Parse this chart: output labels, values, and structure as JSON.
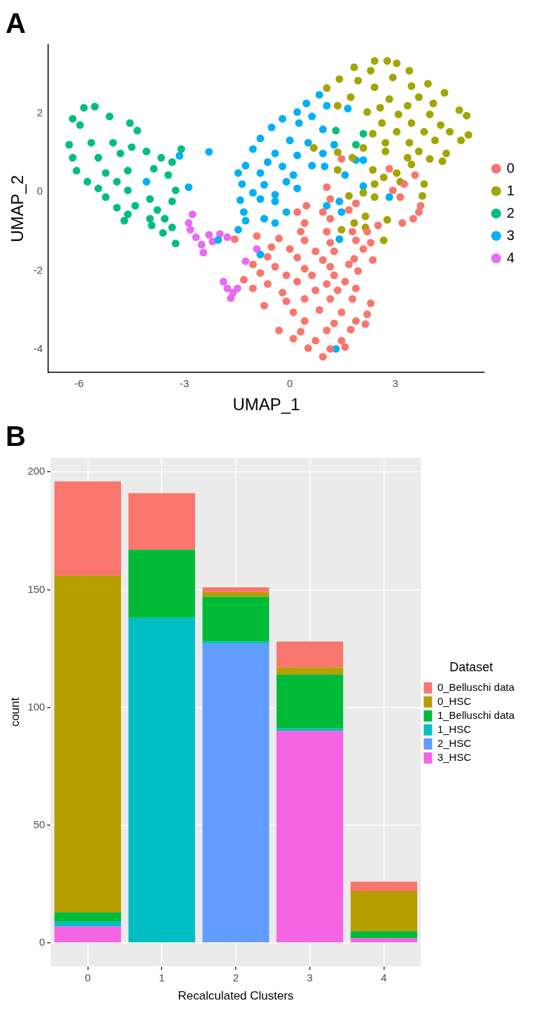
{
  "chart_data": [
    {
      "type": "scatter",
      "title": "A",
      "xlabel": "UMAP_1",
      "ylabel": "UMAP_2",
      "xlim": [
        -6.87,
        5.53
      ],
      "ylim": [
        -4.59,
        3.74
      ],
      "xticks": [
        -6,
        -3,
        0,
        3
      ],
      "yticks": [
        -4,
        -2,
        0,
        2
      ],
      "grid": false,
      "legend": "right",
      "marker": "circle",
      "series": [
        {
          "name": "0",
          "color": "#f8766d",
          "x": [
            2.83,
            3.56,
            1.05,
            2.93,
            3.25,
            3.14,
            3.72,
            3.67,
            1.15,
            1.88,
            3.51,
            3.2,
            0.47,
            0.21,
            0.94,
            1.68,
            0.42,
            1.15,
            2.51,
            0.31,
            1.05,
            1.78,
            2.2,
            -1.57,
            -0.94,
            -0.31,
            0.42,
            1.15,
            1.88,
            2.3,
            -0.52,
            0,
            0.73,
            1.26,
            2.09,
            -0.63,
            0.21,
            0.94,
            1.83,
            2.36,
            -1.05,
            -0.42,
            0.42,
            1.15,
            1.68,
            -0.84,
            -0.1,
            0.63,
            1.26,
            1.94,
            -1.31,
            -0.63,
            0.21,
            1.05,
            1.57,
            -1.05,
            -0.21,
            0.73,
            1.36,
            1.88,
            -0.73,
            -0.1,
            0.42,
            1.15,
            1.78,
            2.3,
            0.1,
            0.84,
            1.47,
            2.2,
            0.42,
            1.26,
            1.88,
            -0.31,
            0.31,
            1.05,
            1.73,
            2.15,
            0.1,
            0.73,
            1.47,
            0.52,
            1.15,
            1.57,
            0.94,
            1.47
          ],
          "values": [
            0.59,
            0.43,
            0.12,
            0.04,
            0.2,
            -0.13,
            -0.35,
            -0.51,
            -0.18,
            -0.29,
            -0.68,
            -0.79,
            -0.35,
            -0.51,
            -0.51,
            -0.46,
            -0.79,
            -0.68,
            -0.85,
            -1.01,
            -1.01,
            -1.01,
            -1.01,
            -1.2,
            -1.12,
            -1.18,
            -1.23,
            -1.29,
            -1.23,
            -1.29,
            -1.4,
            -1.45,
            -1.51,
            -1.51,
            -1.45,
            -1.65,
            -1.67,
            -1.73,
            -1.7,
            -1.73,
            -1.84,
            -1.9,
            -1.95,
            -1.9,
            -1.84,
            -2.06,
            -2.12,
            -2.12,
            -2.12,
            -2.01,
            -2.23,
            -2.34,
            -2.28,
            -2.34,
            -2.28,
            -2.45,
            -2.56,
            -2.5,
            -2.5,
            -2.45,
            -2.89,
            -2.78,
            -2.72,
            -2.72,
            -2.72,
            -2.83,
            -3.06,
            -3,
            -3.06,
            -3.11,
            -3.28,
            -3.34,
            -3.28,
            -3.52,
            -3.55,
            -3.52,
            -3.5,
            -3.36,
            -3.73,
            -3.78,
            -3.78,
            -3.97,
            -3.99,
            -3.94,
            -4.19,
            0.84
          ]
        },
        {
          "name": "1",
          "color": "#a3a500",
          "x": [
            2.41,
            2.77,
            3.04,
            1.83,
            2.3,
            3.4,
            1.41,
            1.94,
            2.93,
            1.05,
            2.41,
            3.46,
            3.93,
            4.4,
            1.73,
            2.83,
            3.67,
            1.36,
            2.57,
            3.35,
            4.08,
            4.82,
            2.2,
            3.09,
            3.98,
            5.03,
            2.62,
            3.46,
            4.29,
            2.36,
            3.04,
            3.82,
            4.55,
            5.08,
            2.72,
            3.4,
            4.13,
            4.87,
            0.68,
            1.36,
            2.09,
            2.72,
            3.67,
            4.45,
            1.78,
            3.35,
            3.98,
            4.34,
            3.46,
            1.36,
            2.36,
            3.04,
            2.67,
            2.41,
            3.82,
            3.14,
            2.09,
            1.68,
            3.77,
            2.41,
            2.15,
            2.77,
            1.83,
            1.47,
            2.67,
            2.15
          ],
          "values": [
            3.33,
            3.33,
            3.27,
            3.17,
            3.08,
            3.08,
            2.87,
            2.83,
            2.91,
            2.64,
            2.66,
            2.69,
            2.75,
            2.52,
            2.41,
            2.36,
            2.41,
            2.19,
            2.14,
            2.19,
            2.25,
            2.08,
            2.03,
            1.97,
            1.97,
            1.94,
            1.75,
            1.75,
            1.7,
            1.48,
            1.53,
            1.53,
            1.53,
            1.45,
            1.25,
            1.25,
            1.31,
            1.31,
            1.12,
            1.01,
            1.12,
            1.03,
            1.03,
            0.98,
            0.87,
            0.87,
            0.84,
            0.78,
            0.7,
            0.56,
            0.56,
            0.48,
            0.37,
            0.2,
            0.2,
            0.26,
            -0.02,
            -0.1,
            -0.1,
            -0.13,
            -0.62,
            -0.71,
            -0.79,
            -0.96,
            -1.23,
            -0.9
          ]
        },
        {
          "name": "2",
          "color": "#00bf7d",
          "x": [
            -5.86,
            -5.55,
            -6.18,
            -5.97,
            -5.13,
            -4.55,
            -4.34,
            -6.28,
            -5.65,
            -5.03,
            -4.5,
            -6.18,
            -5.45,
            -4.82,
            -4.08,
            -3.66,
            -3.35,
            -3.09,
            -6.07,
            -5.24,
            -4.61,
            -3.87,
            -3.46,
            -5.76,
            -4.92,
            -5.45,
            -4.61,
            -5.24,
            -3.98,
            -3.35,
            -3.25,
            -4.92,
            -4.4,
            -3.77,
            -4.61,
            -4.71,
            -3.98,
            -3.56,
            -3.93,
            -3.35,
            -3.61,
            -3.25,
            1.31,
            2.09,
            1.88
          ],
          "values": [
            2.14,
            2.17,
            1.86,
            1.7,
            1.92,
            1.75,
            1.56,
            1.2,
            1.25,
            1.25,
            1.14,
            0.87,
            0.87,
            0.98,
            1.03,
            0.87,
            0.76,
            1.09,
            0.54,
            0.48,
            0.54,
            0.59,
            0.43,
            0.26,
            0.26,
            0.09,
            0.04,
            -0.13,
            -0.18,
            -0.24,
            0.04,
            -0.4,
            -0.35,
            -0.46,
            -0.57,
            -0.73,
            -0.68,
            -0.68,
            -0.85,
            -0.9,
            -1.04,
            -1.31,
            1.56,
            1.48,
            1.2
          ]
        },
        {
          "name": "3",
          "color": "#00b0f6",
          "x": [
            0.84,
            0.47,
            1.05,
            1.65,
            0.21,
            -0.21,
            0.63,
            -0.52,
            0.26,
            0.94,
            -0.84,
            0,
            0.52,
            1.26,
            -1.05,
            -0.42,
            0.21,
            0.94,
            2.09,
            -0.63,
            -0.21,
            0.63,
            0.99,
            -1.26,
            -1.47,
            -0.84,
            0.1,
            1.57,
            -1.36,
            -0.73,
            -0.1,
            0.21,
            -1.05,
            -0.42,
            -1.41,
            -0.84,
            -0.42,
            -1.31,
            -0.1,
            -1.26,
            -0.73,
            -0.42,
            -1.47,
            1.05,
            1.41,
            1.47,
            2.2,
            2.83,
            2.09,
            1.41,
            -2.04,
            -3.14,
            -2.3,
            -4.08,
            -2.88,
            -0.84,
            1.31,
            1.88
          ],
          "values": [
            2.47,
            2.25,
            2.19,
            2.12,
            2.03,
            1.86,
            1.92,
            1.64,
            1.75,
            1.59,
            1.36,
            1.31,
            1.25,
            1.2,
            1.09,
            0.98,
            0.93,
            0.98,
            0.81,
            0.76,
            0.65,
            0.67,
            0.65,
            0.67,
            0.48,
            0.48,
            0.43,
            0.43,
            0.2,
            0.18,
            0.26,
            0.09,
            -0.02,
            -0.07,
            -0.21,
            -0.18,
            -0.24,
            -0.51,
            -0.51,
            -0.73,
            -0.68,
            -0.79,
            -0.96,
            -0.35,
            -0.24,
            -0.51,
            null,
            -0.13,
            0.15,
            -1.2,
            -1.22,
            0.92,
            1.02,
            0.26,
            0.12,
            -1.59,
            -3.99,
            0.81
          ]
        },
        {
          "name": "4",
          "color": "#e76bf3",
          "x": [
            -2.77,
            -2.88,
            -2.83,
            -2.67,
            -2.3,
            -1.99,
            -1.78,
            -2.51,
            -2.2,
            -2.46,
            -0.94,
            -1.26,
            -1.89,
            -1.78,
            -1.62,
            -1.68,
            -1.49
          ],
          "values": [
            -0.57,
            -0.79,
            -0.96,
            -1.15,
            -1.09,
            -1.07,
            -1.15,
            -1.34,
            -1.26,
            -1.54,
            -1.45,
            -1.76,
            -2.28,
            -2.45,
            -2.56,
            -2.7,
            -2.45
          ]
        }
      ]
    },
    {
      "type": "bar",
      "title": "B",
      "xlabel": "Recalculated Clusters",
      "ylabel": "count",
      "legend_title": "Dataset",
      "categories": [
        "0",
        "1",
        "2",
        "3",
        "4"
      ],
      "ylim": [
        -10,
        206
      ],
      "yticks": [
        0,
        50,
        100,
        150,
        200
      ],
      "grid": true,
      "legend": "right",
      "stacked": true,
      "series": [
        {
          "name": "3_HSC",
          "color": "#f564e3",
          "values": [
            7,
            0,
            0,
            90,
            2
          ]
        },
        {
          "name": "2_HSC",
          "color": "#619cff",
          "values": [
            0,
            0,
            127,
            0,
            0
          ]
        },
        {
          "name": "1_HSC",
          "color": "#00bfc4",
          "values": [
            2,
            138,
            1,
            1,
            0
          ]
        },
        {
          "name": "1_Belluschi data",
          "color": "#00ba38",
          "values": [
            4,
            29,
            19,
            23,
            3
          ]
        },
        {
          "name": "0_HSC",
          "color": "#b79f00",
          "values": [
            143,
            0,
            2,
            3,
            17
          ]
        },
        {
          "name": "0_Belluschi data",
          "color": "#f8766d",
          "values": [
            40,
            24,
            2,
            11,
            4
          ]
        }
      ]
    }
  ]
}
